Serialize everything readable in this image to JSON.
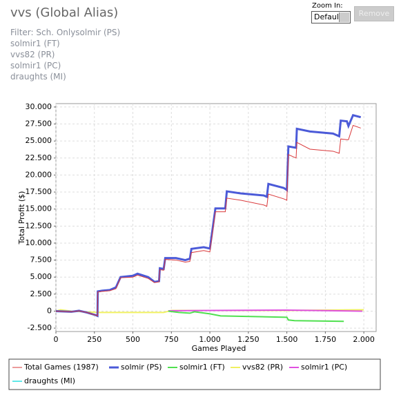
{
  "header": {
    "title": "vvs (Global Alias)",
    "filters": [
      "Filter: Sch. Onlysolmir (PS)",
      "solmir1 (FT)",
      "vvs82 (PR)",
      "solmir1 (PC)",
      "draughts (MI)"
    ],
    "zoom_label": "Zoom In:",
    "zoom_value": "Default",
    "remove_button": "Remove"
  },
  "chart_data": {
    "type": "line",
    "xlabel": "Games Played",
    "ylabel": "Total Profit ($)",
    "grid": true,
    "xlim": [
      0,
      2080
    ],
    "ylim": [
      -3000,
      30500
    ],
    "xticks": [
      0,
      250,
      500,
      750,
      {
        "value": 1000,
        "label": "1.000"
      },
      {
        "value": 1250,
        "label": "1.250"
      },
      {
        "value": 1500,
        "label": "1.500"
      },
      {
        "value": 1750,
        "label": "1.750"
      },
      {
        "value": 2000,
        "label": "2.000"
      }
    ],
    "yticks": [
      {
        "value": -2500,
        "label": "-2.500"
      },
      0,
      {
        "value": 2500,
        "label": "2.500"
      },
      {
        "value": 5000,
        "label": "5.000"
      },
      {
        "value": 7500,
        "label": "7.500"
      },
      {
        "value": 10000,
        "label": "10.000"
      },
      {
        "value": 12500,
        "label": "12.500"
      },
      {
        "value": 15000,
        "label": "15.000"
      },
      {
        "value": 17500,
        "label": "17.500"
      },
      {
        "value": 20000,
        "label": "20.000"
      },
      {
        "value": 22500,
        "label": "22.500"
      },
      {
        "value": 25000,
        "label": "25.000"
      },
      {
        "value": 27500,
        "label": "27.500"
      },
      {
        "value": 30000,
        "label": "30.000"
      }
    ],
    "series": [
      {
        "name": "Total Games (1987)",
        "color": "#d9383a",
        "width": 1,
        "x": [
          0,
          100,
          150,
          200,
          260,
          270,
          272,
          300,
          350,
          390,
          420,
          500,
          530,
          600,
          640,
          670,
          675,
          700,
          710,
          780,
          840,
          870,
          880,
          960,
          1000,
          1036,
          1100,
          1110,
          1200,
          1350,
          1370,
          1380,
          1480,
          1500,
          1510,
          1560,
          1565,
          1650,
          1800,
          1840,
          1850,
          1890,
          1900,
          1930,
          1980
        ],
        "values": [
          0,
          -100,
          50,
          -200,
          -600,
          -700,
          2800,
          2900,
          3000,
          3300,
          4900,
          5000,
          5300,
          4800,
          4200,
          4300,
          6100,
          6000,
          7600,
          7500,
          7200,
          7300,
          8600,
          8900,
          8700,
          14600,
          14600,
          16600,
          16300,
          15600,
          15400,
          17200,
          16500,
          16300,
          23000,
          22500,
          24800,
          23800,
          23500,
          23200,
          25300,
          25200,
          25200,
          27300,
          26900
        ]
      },
      {
        "name": "solmir (PS)",
        "color": "#4b5ad8",
        "width": 3,
        "x": [
          0,
          100,
          150,
          200,
          260,
          270,
          272,
          300,
          350,
          390,
          420,
          500,
          530,
          600,
          640,
          670,
          675,
          700,
          710,
          780,
          840,
          870,
          880,
          960,
          1000,
          1036,
          1100,
          1110,
          1200,
          1350,
          1370,
          1380,
          1480,
          1500,
          1510,
          1560,
          1565,
          1650,
          1800,
          1840,
          1850,
          1890,
          1900,
          1930,
          1980
        ],
        "values": [
          0,
          -100,
          50,
          -200,
          -600,
          -700,
          2900,
          3000,
          3100,
          3500,
          5000,
          5200,
          5500,
          5000,
          4300,
          4400,
          6300,
          6200,
          7800,
          7800,
          7500,
          7700,
          9150,
          9400,
          9200,
          15100,
          15100,
          17600,
          17300,
          17000,
          16800,
          18700,
          18100,
          17800,
          24200,
          24000,
          26800,
          26400,
          26100,
          25700,
          28000,
          27900,
          27200,
          28800,
          28500
        ]
      },
      {
        "name": "solmir1 (FT)",
        "color": "#4fe04f",
        "width": 2,
        "x": [
          730,
          800,
          870,
          900,
          1000,
          1070,
          1500,
          1510,
          1550,
          1870
        ],
        "values": [
          0,
          -200,
          -300,
          -100,
          -400,
          -700,
          -900,
          -1300,
          -1400,
          -1500
        ]
      },
      {
        "name": "vvs82 (PR)",
        "color": "#f0f060",
        "width": 2,
        "x": [
          0,
          30,
          100,
          270,
          700,
          750,
          1500,
          2000
        ],
        "values": [
          0,
          200,
          0,
          -200,
          -200,
          100,
          100,
          200
        ]
      },
      {
        "name": "solmir1 (PC)",
        "color": "#e050e0",
        "width": 2,
        "x": [
          730,
          1000,
          1500,
          1990
        ],
        "values": [
          50,
          100,
          150,
          0
        ]
      },
      {
        "name": "draughts (MI)",
        "color": "#60e8e8",
        "width": 2,
        "x": [
          0,
          50
        ],
        "values": [
          0,
          0
        ]
      }
    ]
  }
}
